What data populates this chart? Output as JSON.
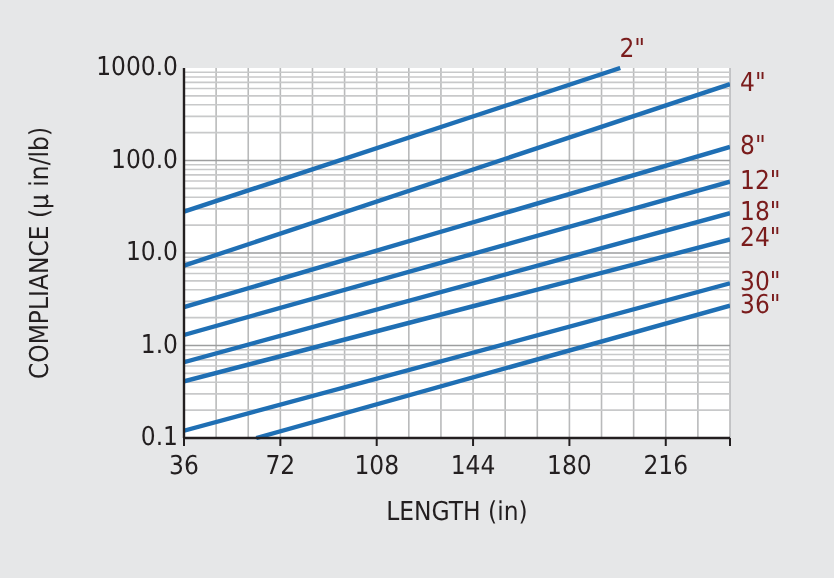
{
  "chart_data": {
    "type": "line",
    "xlabel": "LENGTH (in)",
    "ylabel": "COMPLIANCE (µ in/lb)",
    "log": "y",
    "grid": true,
    "line_style": "solid",
    "xlim": [
      36,
      240
    ],
    "xticks": [
      36,
      72,
      108,
      144,
      180,
      216,
      {
        "value": 240,
        "label": null
      }
    ],
    "ylim": [
      0.1,
      1000
    ],
    "yticks": [
      {
        "value": 0.1,
        "label": "0.1"
      },
      {
        "value": 1,
        "label": "1.0"
      },
      {
        "value": 10,
        "label": "10.0"
      },
      {
        "value": 100,
        "label": "100.0"
      },
      {
        "value": 1000,
        "label": "1000.0"
      }
    ],
    "series": [
      {
        "name": "2\"",
        "color": "#1f6fb4",
        "x": [
          36,
          199
        ],
        "values": [
          28,
          1000
        ]
      },
      {
        "name": "4\"",
        "color": "#1f6fb4",
        "x": [
          36,
          240
        ],
        "values": [
          7.3,
          670
        ]
      },
      {
        "name": "8\"",
        "color": "#1f6fb4",
        "x": [
          36,
          240
        ],
        "values": [
          2.6,
          140
        ]
      },
      {
        "name": "12\"",
        "color": "#1f6fb4",
        "x": [
          36,
          240
        ],
        "values": [
          1.3,
          59
        ]
      },
      {
        "name": "18\"",
        "color": "#1f6fb4",
        "x": [
          36,
          240
        ],
        "values": [
          0.66,
          27
        ]
      },
      {
        "name": "24\"",
        "color": "#1f6fb4",
        "x": [
          36,
          240
        ],
        "values": [
          0.41,
          14
        ]
      },
      {
        "name": "30\"",
        "color": "#1f6fb4",
        "x": [
          36,
          240
        ],
        "values": [
          0.12,
          4.7
        ]
      },
      {
        "name": "36\"",
        "color": "#1f6fb4",
        "x": [
          63,
          240
        ],
        "values": [
          0.1,
          2.7
        ]
      }
    ]
  }
}
